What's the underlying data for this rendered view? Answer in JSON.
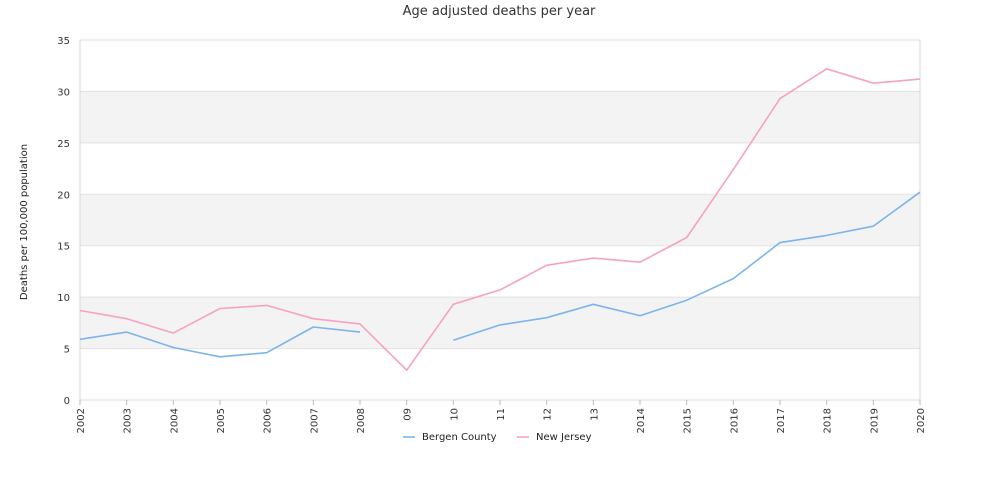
{
  "chart_data": {
    "type": "line",
    "title": "Age adjusted deaths per year",
    "xlabel": "",
    "ylabel": "Deaths per 100,000 population",
    "categories": [
      "2002",
      "2003",
      "2004",
      "2005",
      "2006",
      "2007",
      "2008",
      "09",
      "10",
      "11",
      "12",
      "13",
      "2014",
      "2015",
      "2016",
      "2017",
      "2018",
      "2019",
      "2020"
    ],
    "ylim": [
      0,
      35
    ],
    "yticks": [
      "0",
      "5",
      "10",
      "15",
      "20",
      "25",
      "30",
      "35"
    ],
    "grid": true,
    "legend_position": "bottom",
    "series": [
      {
        "name": "Bergen County",
        "color": "#7cb5ec",
        "values": [
          5.9,
          6.6,
          5.1,
          4.2,
          4.6,
          7.1,
          6.6,
          null,
          5.8,
          7.3,
          8.0,
          9.3,
          8.2,
          9.7,
          11.8,
          15.3,
          16.0,
          16.9,
          20.2
        ]
      },
      {
        "name": "New Jersey",
        "color": "#f7a1c4",
        "values": [
          8.7,
          7.9,
          6.5,
          8.9,
          9.2,
          7.9,
          7.4,
          2.9,
          9.3,
          10.7,
          13.1,
          13.8,
          13.4,
          15.8,
          22.4,
          29.3,
          32.2,
          30.8,
          31.2
        ]
      }
    ]
  }
}
